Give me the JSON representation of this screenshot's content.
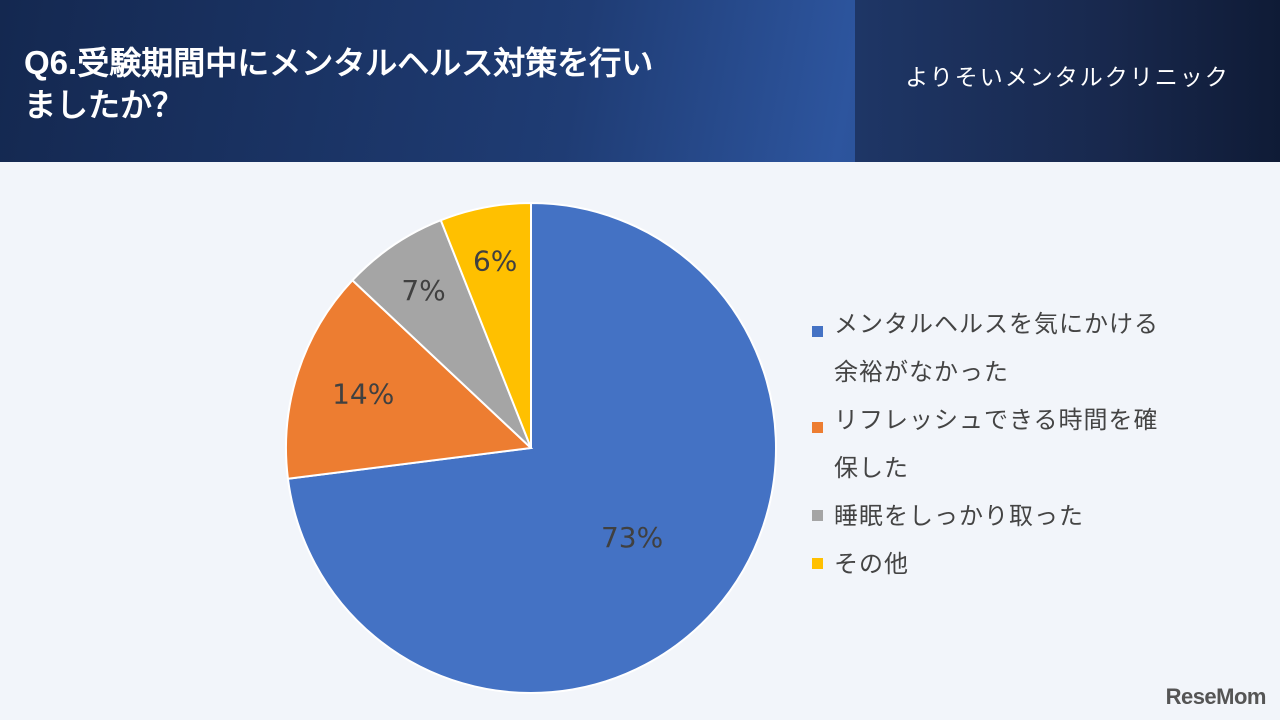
{
  "header": {
    "question": "Q6.",
    "title_line1": "受験期間中にメンタルヘルス対策を行い",
    "title_line2": "ましたか？",
    "clinic": "よりそいメンタルクリニック"
  },
  "chart_data": {
    "type": "pie",
    "title": "Q6.受験期間中にメンタルヘルス対策を行いましたか？",
    "categories": [
      "メンタルヘルスを気にかける余裕がなかった",
      "リフレッシュできる時間を確保した",
      "睡眠をしっかり取った",
      "その他"
    ],
    "values": [
      73,
      14,
      7,
      6
    ],
    "labels": [
      "73%",
      "14%",
      "7%",
      "6%"
    ],
    "colors": [
      "#4472c4",
      "#ed7d31",
      "#a5a5a5",
      "#ffc000"
    ],
    "legend_position": "right"
  },
  "legend": [
    {
      "line1": "メンタルヘルスを気にかける",
      "line2": "余裕がなかった",
      "color": "#4472c4"
    },
    {
      "line1": "リフレッシュできる時間を確",
      "line2": "保した",
      "color": "#ed7d31"
    },
    {
      "line1": "睡眠をしっかり取った",
      "line2": "",
      "color": "#a5a5a5"
    },
    {
      "line1": "その他",
      "line2": "",
      "color": "#ffc000"
    }
  ],
  "watermark": "ReseMom"
}
